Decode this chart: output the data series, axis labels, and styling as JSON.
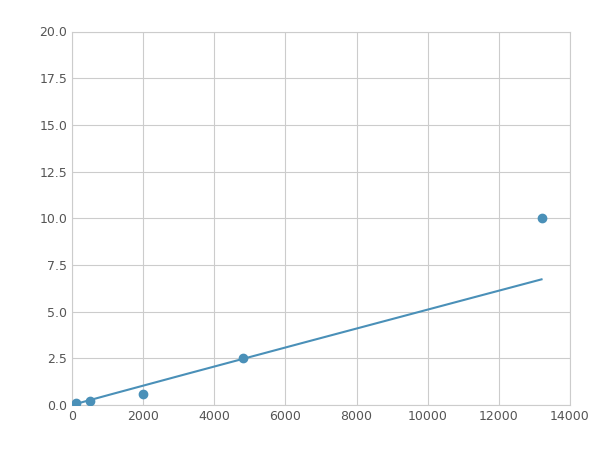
{
  "x": [
    125,
    500,
    2000,
    4800,
    13200
  ],
  "y": [
    0.1,
    0.2,
    0.6,
    2.5,
    10.0
  ],
  "line_color": "#4a90b8",
  "marker_color": "#4a90b8",
  "marker_size": 6,
  "xlim": [
    0,
    14000
  ],
  "ylim": [
    0,
    20.0
  ],
  "xticks": [
    0,
    2000,
    4000,
    6000,
    8000,
    10000,
    12000,
    14000
  ],
  "yticks": [
    0.0,
    2.5,
    5.0,
    7.5,
    10.0,
    12.5,
    15.0,
    17.5,
    20.0
  ],
  "grid": true,
  "background_color": "#ffffff",
  "grid_color": "#cccccc",
  "figsize": [
    6.0,
    4.5
  ],
  "dpi": 100
}
